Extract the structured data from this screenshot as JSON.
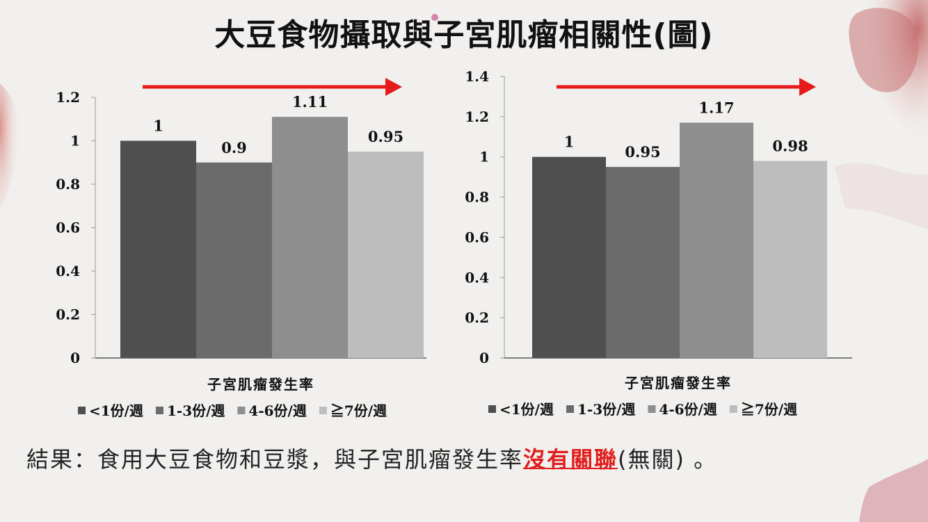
{
  "slide": {
    "title": "大豆食物攝取與子宮肌瘤相關性(圖)",
    "conclusion_prefix": "結果：食用大豆食物和豆漿，與子宮肌瘤發生率",
    "conclusion_highlight": "沒有關聯",
    "conclusion_suffix": "(無關) 。"
  },
  "colors": {
    "series": [
      "#4f4f4f",
      "#6b6b6b",
      "#8e8e8e",
      "#bdbdbd"
    ],
    "arrow": "#e51b1b",
    "highlight": "#e01e1e"
  },
  "chart_data": [
    {
      "type": "bar",
      "xlabel": "子宮肌瘤發生率",
      "ylim": [
        0,
        1.2
      ],
      "yticks": [
        "0",
        "0.2",
        "0.4",
        "0.6",
        "0.8",
        "1",
        "1.2"
      ],
      "series": [
        {
          "name": "<1份/週",
          "values": [
            1
          ],
          "label": "1"
        },
        {
          "name": "1-3份/週",
          "values": [
            0.9
          ],
          "label": "0.9"
        },
        {
          "name": "4-6份/週",
          "values": [
            1.11
          ],
          "label": "1.11"
        },
        {
          "name": "≧7份/週",
          "values": [
            0.95
          ],
          "label": "0.95"
        }
      ],
      "legend": "bottom"
    },
    {
      "type": "bar",
      "xlabel": "子宮肌瘤發生率",
      "ylim": [
        0,
        1.4
      ],
      "yticks": [
        "0",
        "0.2",
        "0.4",
        "0.6",
        "0.8",
        "1",
        "1.2",
        "1.4"
      ],
      "series": [
        {
          "name": "<1份/週",
          "values": [
            1
          ],
          "label": "1"
        },
        {
          "name": "1-3份/週",
          "values": [
            0.95
          ],
          "label": "0.95"
        },
        {
          "name": "4-6份/週",
          "values": [
            1.17
          ],
          "label": "1.17"
        },
        {
          "name": "≧7份/週",
          "values": [
            0.98
          ],
          "label": "0.98"
        }
      ],
      "legend": "bottom"
    }
  ]
}
